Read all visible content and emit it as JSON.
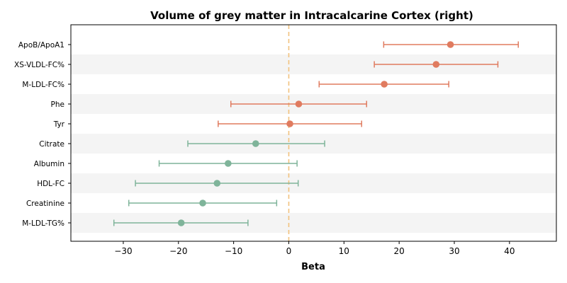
{
  "chart_data": {
    "type": "forest",
    "title": "Volume of grey matter in Intracalcarine Cortex (right)",
    "xlabel": "Beta",
    "ylabel": "",
    "xlim": [
      -39.5,
      48.5
    ],
    "xticks": [
      -30,
      -20,
      -10,
      0,
      10,
      20,
      30,
      40
    ],
    "xtick_labels": [
      "−30",
      "−20",
      "−10",
      "0",
      "10",
      "20",
      "30",
      "40"
    ],
    "reference_line": 0,
    "colors": {
      "positive": "#e07b5f",
      "negative": "#7fb49a",
      "reference": "#f2c27d",
      "band": "#f4f4f4"
    },
    "categories": [
      "ApoB/ApoA1",
      "XS-VLDL-FC%",
      "M-LDL-FC%",
      "Phe",
      "Tyr",
      "Citrate",
      "Albumin",
      "HDL-FC",
      "Creatinine",
      "M-LDL-TG%"
    ],
    "estimates": [
      29.3,
      26.7,
      17.3,
      1.8,
      0.2,
      -6.0,
      -11.0,
      -13.0,
      -15.6,
      -19.5
    ],
    "ci_low": [
      17.2,
      15.5,
      5.5,
      -10.5,
      -12.8,
      -18.3,
      -23.5,
      -27.8,
      -29.0,
      -31.7
    ],
    "ci_high": [
      41.6,
      37.9,
      29.0,
      14.1,
      13.2,
      6.5,
      1.5,
      1.7,
      -2.2,
      -7.4
    ]
  }
}
